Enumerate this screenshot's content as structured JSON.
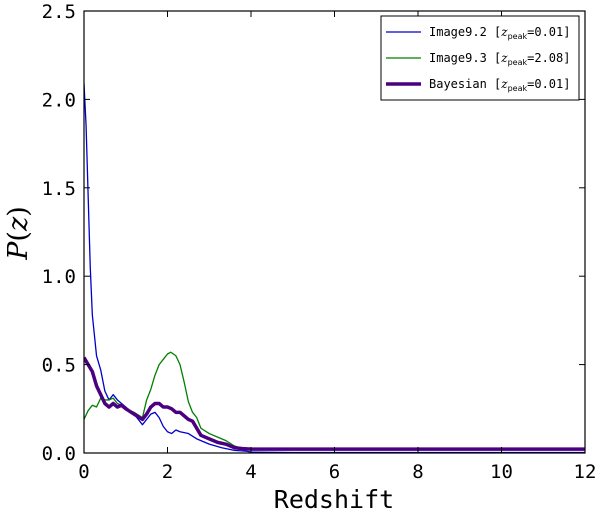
{
  "chart_data": {
    "type": "line",
    "xlabel": "Redshift",
    "ylabel_var": "P",
    "ylabel_arg": "z",
    "xlim": [
      0,
      12
    ],
    "ylim": [
      0,
      2.5
    ],
    "xticks": [
      0,
      2,
      4,
      6,
      8,
      10,
      12
    ],
    "yticks": [
      0.0,
      0.5,
      1.0,
      1.5,
      2.0,
      2.5
    ],
    "xtick_labels": [
      "0",
      "2",
      "4",
      "6",
      "8",
      "10",
      "12"
    ],
    "ytick_labels": [
      "0.0",
      "0.5",
      "1.0",
      "1.5",
      "2.0",
      "2.5"
    ],
    "grid": false,
    "legend_position": "top-right",
    "series": [
      {
        "name": "Image9.2",
        "legend_text": "Image9.2 [",
        "legend_var": "z",
        "legend_sub": "peak",
        "legend_val": "=0.01]",
        "color": "#0000cc",
        "width": 1.3,
        "x": [
          0.0,
          0.05,
          0.1,
          0.15,
          0.2,
          0.3,
          0.4,
          0.5,
          0.6,
          0.7,
          0.8,
          0.9,
          1.0,
          1.2,
          1.4,
          1.6,
          1.7,
          1.8,
          1.9,
          2.0,
          2.1,
          2.2,
          2.3,
          2.5,
          2.7,
          3.0,
          3.3,
          3.6,
          3.9,
          4.0,
          5.0,
          6.0,
          8.0,
          10.0,
          12.0
        ],
        "y": [
          2.09,
          1.85,
          1.45,
          1.05,
          0.78,
          0.55,
          0.47,
          0.35,
          0.3,
          0.33,
          0.3,
          0.28,
          0.26,
          0.22,
          0.16,
          0.22,
          0.23,
          0.2,
          0.15,
          0.12,
          0.11,
          0.13,
          0.12,
          0.11,
          0.08,
          0.05,
          0.03,
          0.015,
          0.01,
          0.005,
          0.003,
          0.003,
          0.003,
          0.003,
          0.003
        ]
      },
      {
        "name": "Image9.3",
        "legend_text": "Image9.3 [",
        "legend_var": "z",
        "legend_sub": "peak",
        "legend_val": "=2.08]",
        "color": "#007f00",
        "width": 1.3,
        "x": [
          0.0,
          0.1,
          0.2,
          0.3,
          0.4,
          0.5,
          0.6,
          0.7,
          0.8,
          0.9,
          1.0,
          1.2,
          1.4,
          1.5,
          1.6,
          1.7,
          1.8,
          1.9,
          2.0,
          2.08,
          2.2,
          2.3,
          2.4,
          2.5,
          2.6,
          2.7,
          2.8,
          3.0,
          3.2,
          3.4,
          3.6,
          3.8,
          4.0,
          5.0,
          6.0,
          8.0,
          10.0,
          12.0
        ],
        "y": [
          0.19,
          0.24,
          0.27,
          0.26,
          0.31,
          0.3,
          0.3,
          0.31,
          0.28,
          0.27,
          0.25,
          0.23,
          0.2,
          0.3,
          0.36,
          0.44,
          0.5,
          0.53,
          0.56,
          0.57,
          0.55,
          0.5,
          0.4,
          0.29,
          0.23,
          0.2,
          0.14,
          0.11,
          0.09,
          0.07,
          0.04,
          0.025,
          0.02,
          0.02,
          0.02,
          0.02,
          0.02,
          0.02
        ]
      },
      {
        "name": "Bayesian",
        "legend_text": "Bayesian [",
        "legend_var": "z",
        "legend_sub": "peak",
        "legend_val": "=0.01]",
        "color": "#4b0082",
        "width": 3.5,
        "x": [
          0.0,
          0.1,
          0.2,
          0.3,
          0.4,
          0.5,
          0.6,
          0.7,
          0.8,
          0.9,
          1.0,
          1.2,
          1.4,
          1.5,
          1.6,
          1.7,
          1.8,
          1.9,
          2.0,
          2.1,
          2.2,
          2.3,
          2.4,
          2.5,
          2.6,
          2.7,
          2.8,
          3.0,
          3.2,
          3.4,
          3.6,
          3.8,
          4.0,
          5.0,
          6.0,
          8.0,
          10.0,
          12.0
        ],
        "y": [
          0.54,
          0.5,
          0.46,
          0.38,
          0.33,
          0.28,
          0.26,
          0.28,
          0.26,
          0.27,
          0.25,
          0.22,
          0.19,
          0.22,
          0.26,
          0.28,
          0.28,
          0.26,
          0.26,
          0.25,
          0.23,
          0.23,
          0.21,
          0.19,
          0.18,
          0.14,
          0.1,
          0.08,
          0.06,
          0.05,
          0.03,
          0.025,
          0.022,
          0.022,
          0.022,
          0.022,
          0.022,
          0.022
        ]
      }
    ]
  }
}
